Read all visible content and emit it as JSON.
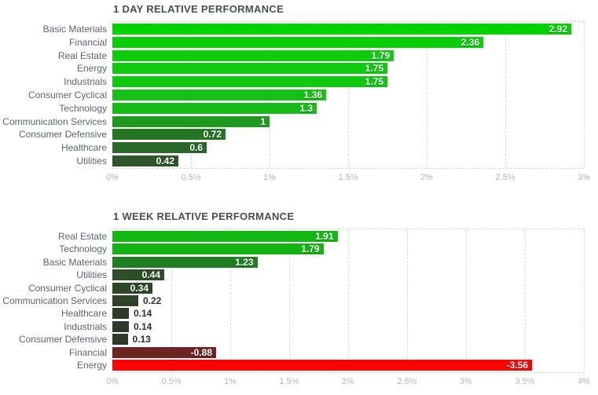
{
  "page": {
    "background": "#ffffff",
    "grid_color": "#d8d8d8",
    "title_color": "#474d57",
    "category_label_color": "#5b6370",
    "tick_label_color": "#b4b7bc"
  },
  "chart_data": [
    {
      "type": "bar",
      "orientation": "horizontal",
      "title": "1 DAY RELATIVE PERFORMANCE",
      "xlabel": "",
      "ylabel": "",
      "xlim": [
        0,
        3
      ],
      "grid": "dashed-vertical",
      "legend": "none",
      "tick_labels": [
        "0%",
        "0.5%",
        "1%",
        "1.5%",
        "2%",
        "2.5%",
        "3%"
      ],
      "bars": [
        {
          "category": "Basic Materials",
          "value": 2.92,
          "label": "2.92",
          "color": "#03d203"
        },
        {
          "category": "Financial",
          "value": 2.36,
          "label": "2.36",
          "color": "#08cf08"
        },
        {
          "category": "Real Estate",
          "value": 1.79,
          "label": "1.79",
          "color": "#0ecb0e"
        },
        {
          "category": "Energy",
          "value": 1.75,
          "label": "1.75",
          "color": "#0fca0f"
        },
        {
          "category": "Industrials",
          "value": 1.75,
          "label": "1.75",
          "color": "#0fca0f"
        },
        {
          "category": "Consumer Cyclical",
          "value": 1.36,
          "label": "1.36",
          "color": "#14c114"
        },
        {
          "category": "Technology",
          "value": 1.3,
          "label": "1.3",
          "color": "#17bb17"
        },
        {
          "category": "Communication Services",
          "value": 1,
          "label": "1",
          "color": "#1f9a1f"
        },
        {
          "category": "Consumer Defensive",
          "value": 0.72,
          "label": "0.72",
          "color": "#247524"
        },
        {
          "category": "Healthcare",
          "value": 0.6,
          "label": "0.6",
          "color": "#286828"
        },
        {
          "category": "Utilities",
          "value": 0.42,
          "label": "0.42",
          "color": "#2f5429"
        }
      ]
    },
    {
      "type": "bar",
      "orientation": "horizontal",
      "title": "1 WEEK RELATIVE PERFORMANCE",
      "xlabel": "",
      "ylabel": "",
      "xlim": [
        0,
        4
      ],
      "grid": "dashed-vertical",
      "legend": "none",
      "tick_labels": [
        "0%",
        "0.5%",
        "1%",
        "1.5%",
        "2%",
        "2.5%",
        "3%",
        "3.5%",
        "4%"
      ],
      "bars": [
        {
          "category": "Real Estate",
          "value": 1.91,
          "label": "1.91",
          "color": "#12b912"
        },
        {
          "category": "Technology",
          "value": 1.79,
          "label": "1.79",
          "color": "#15b215"
        },
        {
          "category": "Basic Materials",
          "value": 1.23,
          "label": "1.23",
          "color": "#1f7e1f"
        },
        {
          "category": "Utilities",
          "value": 0.44,
          "label": "0.44",
          "color": "#2c4f28"
        },
        {
          "category": "Consumer Cyclical",
          "value": 0.34,
          "label": "0.34",
          "color": "#2d4829"
        },
        {
          "category": "Communication Services",
          "value": 0.22,
          "label": "0.22",
          "color": "#2e4129"
        },
        {
          "category": "Healthcare",
          "value": 0.14,
          "label": "0.14",
          "color": "#2e3a29"
        },
        {
          "category": "Industrials",
          "value": 0.14,
          "label": "0.14",
          "color": "#2e3a29"
        },
        {
          "category": "Consumer Defensive",
          "value": 0.13,
          "label": "0.13",
          "color": "#2e3929"
        },
        {
          "category": "Financial",
          "value": -0.88,
          "label": "-0.88",
          "color": "#6f2424"
        },
        {
          "category": "Energy",
          "value": -3.56,
          "label": "-3.56",
          "color": "#fb0404"
        }
      ]
    }
  ]
}
